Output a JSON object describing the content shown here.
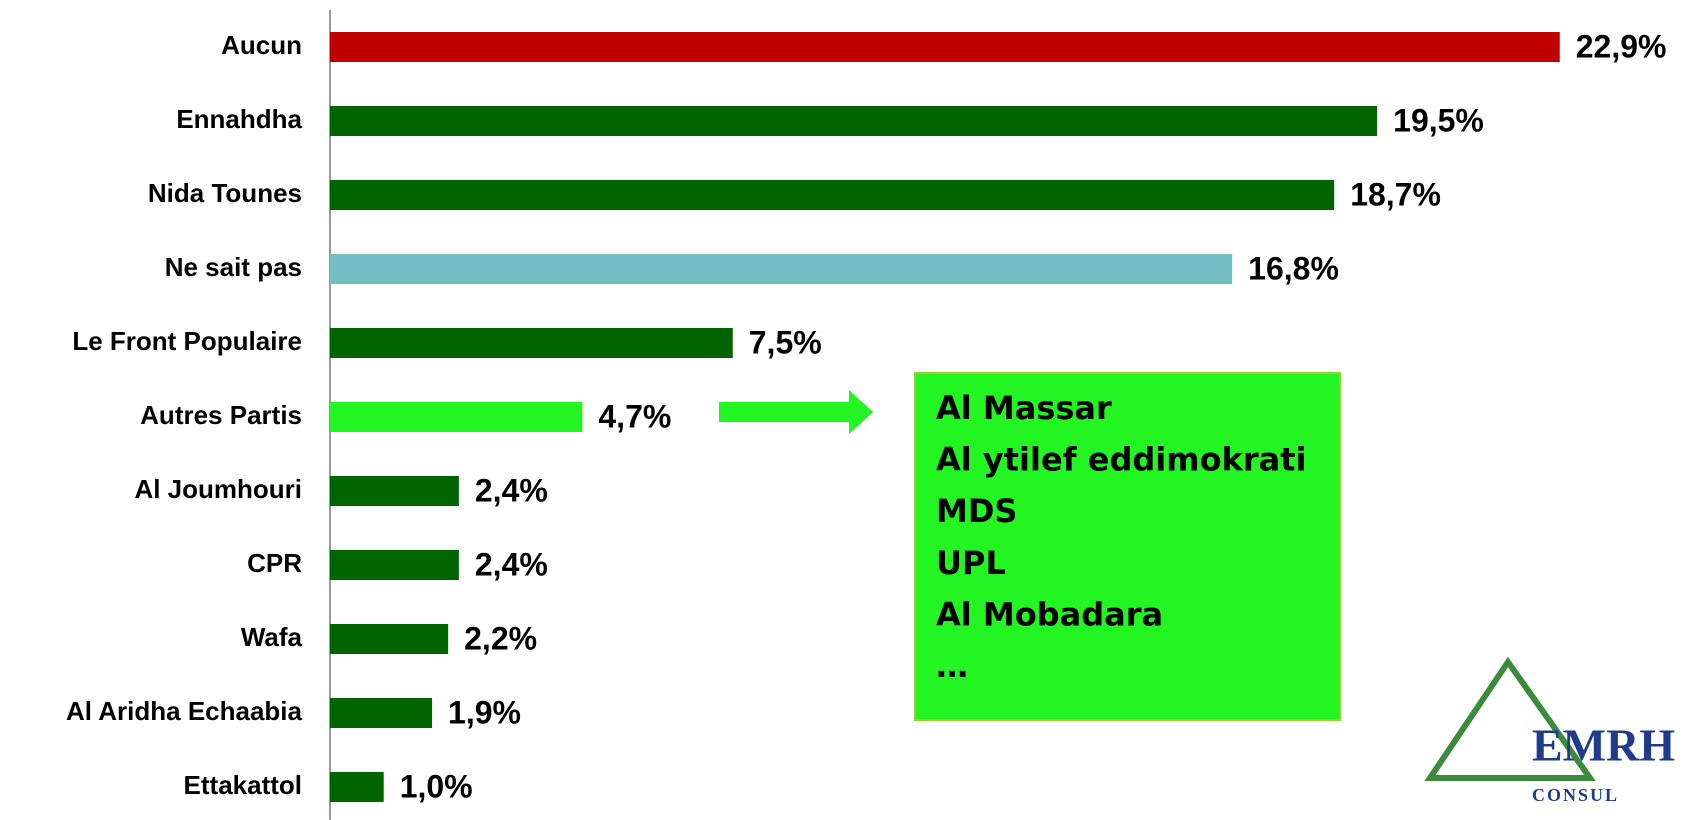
{
  "chart_data": {
    "type": "bar",
    "orientation": "horizontal",
    "categories": [
      "Aucun",
      "Ennahdha",
      "Nida Tounes",
      "Ne sait pas",
      "Le Front Populaire",
      "Autres Partis",
      "Al Joumhouri",
      "CPR",
      "Wafa",
      "Al Aridha Echaabia",
      "Ettakattol"
    ],
    "values": [
      22.9,
      19.5,
      18.7,
      16.8,
      7.5,
      4.7,
      2.4,
      2.4,
      2.2,
      1.9,
      1.0
    ],
    "value_labels": [
      "22,9%",
      "19,5%",
      "18,7%",
      "16,8%",
      "7,5%",
      "4,7%",
      "2,4%",
      "2,4%",
      "2,2%",
      "1,9%",
      "1,0%"
    ],
    "colors": [
      "#c00000",
      "#006400",
      "#006400",
      "#74bfc6",
      "#006400",
      "#22f522",
      "#006400",
      "#006400",
      "#006400",
      "#006400",
      "#006400"
    ],
    "xlim": [
      0,
      25
    ],
    "annotation": {
      "lines": [
        "Al Massar",
        "Al ytilef eddimokrati",
        "MDS",
        "UPL",
        "Al Mobadara",
        "…"
      ],
      "color": "#22f522"
    },
    "logo": {
      "title": "EMRH",
      "subtitle": "CONSUL"
    }
  }
}
